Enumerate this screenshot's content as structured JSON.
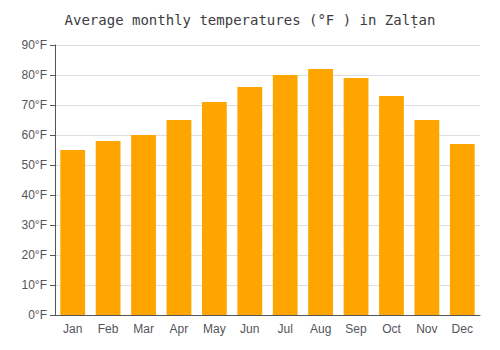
{
  "chart_data": {
    "type": "bar",
    "title": "Average monthly temperatures (°F ) in Zalṭan",
    "categories": [
      "Jan",
      "Feb",
      "Mar",
      "Apr",
      "May",
      "Jun",
      "Jul",
      "Aug",
      "Sep",
      "Oct",
      "Nov",
      "Dec"
    ],
    "values": [
      55,
      58,
      60,
      65,
      71,
      76,
      80,
      82,
      79,
      73,
      65,
      57
    ],
    "color": "#FFA500",
    "ylim": [
      0,
      90
    ],
    "yticks": [
      {
        "value": 0,
        "label": "0°F"
      },
      {
        "value": 10,
        "label": "10°F"
      },
      {
        "value": 20,
        "label": "20°F"
      },
      {
        "value": 30,
        "label": "30°F"
      },
      {
        "value": 40,
        "label": "40°F"
      },
      {
        "value": 50,
        "label": "50°F"
      },
      {
        "value": 60,
        "label": "60°F"
      },
      {
        "value": 70,
        "label": "70°F"
      },
      {
        "value": 80,
        "label": "80°F"
      },
      {
        "value": 90,
        "label": "90°F"
      }
    ],
    "grid": true
  }
}
